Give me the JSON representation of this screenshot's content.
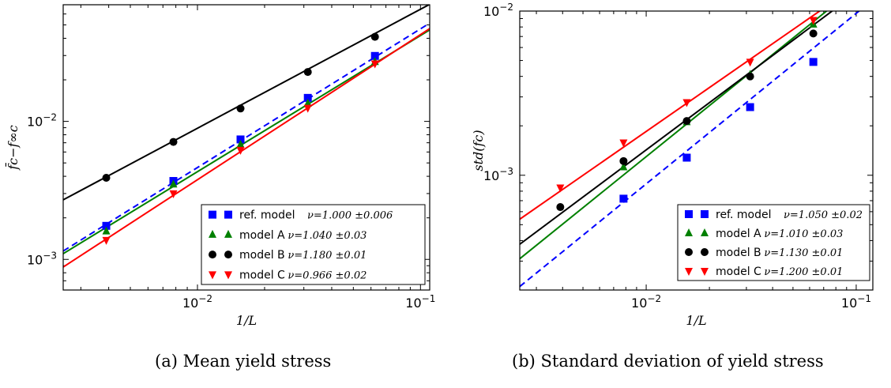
{
  "chart_data": [
    {
      "type": "scatter",
      "panel_label": "(a)",
      "caption": "Mean yield stress",
      "xlabel": "1/L",
      "ylabel": "f̄c−f∞c",
      "xscale": "log",
      "yscale": "log",
      "xlim": [
        0.0025,
        0.11
      ],
      "ylim": [
        0.0006,
        0.07
      ],
      "xticks": [
        {
          "value": 0.01,
          "label": "10-2"
        },
        {
          "value": 0.1,
          "label": "10-1"
        }
      ],
      "yticks": [
        {
          "value": 0.001,
          "label": "10-3"
        },
        {
          "value": 0.01,
          "label": "10-2"
        }
      ],
      "grid": false,
      "legend_position": "bottom-right",
      "series": [
        {
          "name": "ref. model",
          "nu_text": "ν=1.000 ±0.006",
          "color": "#0000ff",
          "marker": "square",
          "line": "dashed",
          "x": [
            0.0039,
            0.0078,
            0.0156,
            0.03125,
            0.0625
          ],
          "y": [
            0.00175,
            0.0037,
            0.0074,
            0.0148,
            0.0298
          ],
          "fit": [
            [
              0.0025,
              0.00115
            ],
            [
              0.11,
              0.0515
            ]
          ]
        },
        {
          "name": "model A",
          "nu_text": "ν=1.040 ±0.03",
          "color": "#008000",
          "marker": "triangle-up",
          "line": "solid",
          "x": [
            0.0039,
            0.0078,
            0.0156,
            0.03125,
            0.0625
          ],
          "y": [
            0.0016,
            0.0035,
            0.0068,
            0.0135,
            0.027
          ],
          "fit": [
            [
              0.0025,
              0.0011
            ],
            [
              0.11,
              0.046
            ]
          ]
        },
        {
          "name": "model B",
          "nu_text": "ν=1.180 ±0.01",
          "color": "#000000",
          "marker": "circle",
          "line": "solid",
          "x": [
            0.0039,
            0.0078,
            0.0156,
            0.03125,
            0.0625
          ],
          "y": [
            0.0039,
            0.0071,
            0.0124,
            0.0228,
            0.041
          ],
          "fit": [
            [
              0.0025,
              0.0027
            ],
            [
              0.11,
              0.0705
            ]
          ]
        },
        {
          "name": "model C",
          "nu_text": "ν=0.966 ±0.02",
          "color": "#ff0000",
          "marker": "triangle-down",
          "line": "solid",
          "x": [
            0.0039,
            0.0078,
            0.0156,
            0.03125,
            0.0625
          ],
          "y": [
            0.00138,
            0.003,
            0.0062,
            0.0125,
            0.0262
          ],
          "fit": [
            [
              0.0025,
              0.00088
            ],
            [
              0.11,
              0.047
            ]
          ]
        }
      ]
    },
    {
      "type": "scatter",
      "panel_label": "(b)",
      "caption": "Standard deviation of yield stress",
      "xlabel": "1/L",
      "ylabel": "std(fc)",
      "xscale": "log",
      "yscale": "log",
      "xlim": [
        0.0025,
        0.12
      ],
      "ylim": [
        0.0002,
        0.01
      ],
      "xticks": [
        {
          "value": 0.01,
          "label": "10-2"
        },
        {
          "value": 0.1,
          "label": "10-1"
        }
      ],
      "yticks": [
        {
          "value": 0.001,
          "label": "10-3"
        },
        {
          "value": 0.01,
          "label": "10-2"
        }
      ],
      "grid": false,
      "legend_position": "bottom-right",
      "series": [
        {
          "name": "ref. model",
          "nu_text": "ν=1.050 ±0.02",
          "color": "#0000ff",
          "marker": "square",
          "line": "dashed",
          "x": [
            0.0078,
            0.0156,
            0.03125,
            0.0625
          ],
          "y": [
            0.00072,
            0.00128,
            0.0026,
            0.0049
          ],
          "fit": [
            [
              0.0025,
              0.00021
            ],
            [
              0.12,
              0.0117
            ]
          ]
        },
        {
          "name": "model A",
          "nu_text": "ν=1.010 ±0.03",
          "color": "#008000",
          "marker": "triangle-up",
          "line": "solid",
          "x": [
            0.0078,
            0.0156,
            0.03125,
            0.0625
          ],
          "y": [
            0.00112,
            0.00211,
            0.0041,
            0.0083
          ],
          "fit": [
            [
              0.0025,
              0.00031
            ],
            [
              0.075,
              0.0104
            ]
          ]
        },
        {
          "name": "model B",
          "nu_text": "ν=1.130 ±0.01",
          "color": "#000000",
          "marker": "circle",
          "line": "solid",
          "x": [
            0.0039,
            0.0078,
            0.0156,
            0.03125,
            0.0625
          ],
          "y": [
            0.00064,
            0.00122,
            0.00214,
            0.004,
            0.0073
          ],
          "fit": [
            [
              0.0025,
              0.00038
            ],
            [
              0.08,
              0.0104
            ]
          ]
        },
        {
          "name": "model C",
          "nu_text": "ν=1.200 ±0.01",
          "color": "#ff0000",
          "marker": "triangle-down",
          "line": "solid",
          "x": [
            0.0039,
            0.0078,
            0.0156,
            0.03125,
            0.0625
          ],
          "y": [
            0.00084,
            0.00158,
            0.00278,
            0.0049,
            0.0088
          ],
          "fit": [
            [
              0.0025,
              0.00054
            ],
            [
              0.07,
              0.0104
            ]
          ]
        }
      ]
    }
  ]
}
